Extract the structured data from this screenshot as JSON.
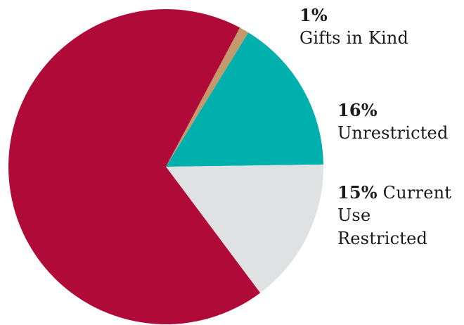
{
  "chart_data": {
    "type": "pie",
    "slices": [
      {
        "name": "Gifts in Kind",
        "percent": "1%",
        "value": 1,
        "color": "#c49a6c"
      },
      {
        "name": "Unrestricted",
        "percent": "16%",
        "value": 16,
        "color": "#00b0ac"
      },
      {
        "name": "Current Use Restricted",
        "percent": "15%",
        "value": 15,
        "color": "#e0e1e3"
      },
      {
        "name": "",
        "percent": "",
        "value": 68,
        "color": "#b00a38"
      }
    ],
    "labels": {
      "gifts": {
        "percent": "1%",
        "line1": "Gifts in Kind"
      },
      "unrestricted": {
        "percent": "16%",
        "line1": "Unrestricted"
      },
      "current": {
        "percent": "15%",
        "line1": "Current",
        "line2": "Use Restricted"
      }
    }
  }
}
